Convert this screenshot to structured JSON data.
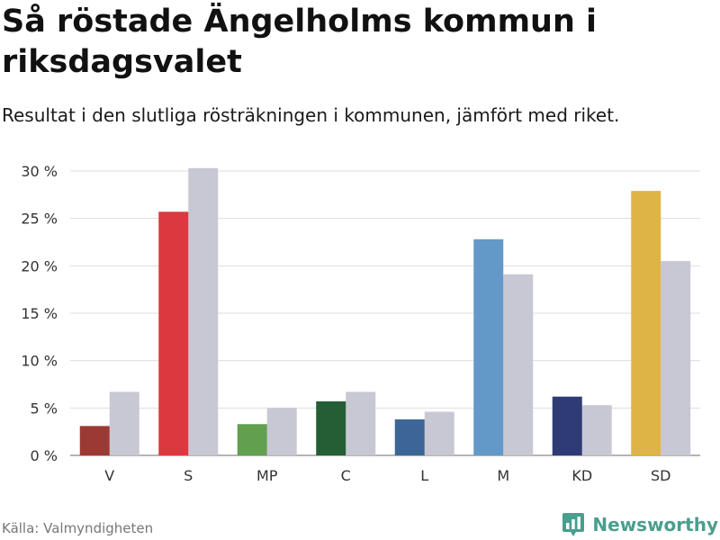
{
  "header": {
    "title": "Så röstade Ängelholms kommun i riksdagsvalet",
    "subtitle": "Resultat i den slutliga rösträkningen i kommunen, jämfört med riket."
  },
  "footer": {
    "source": "Källa: Valmyndigheten",
    "brand": "Newsworthy",
    "brand_icon": "bar-chart-logo-icon",
    "brand_color": "#4a9e8e"
  },
  "chart_data": {
    "type": "bar",
    "categories": [
      "V",
      "S",
      "MP",
      "C",
      "L",
      "M",
      "KD",
      "SD"
    ],
    "series": [
      {
        "values": [
          3.1,
          25.7,
          3.3,
          5.7,
          3.8,
          22.8,
          6.2,
          27.9
        ],
        "colors": [
          "#9b3a35",
          "#dc3840",
          "#62a050",
          "#255e35",
          "#3d6696",
          "#6299c8",
          "#2f3b75",
          "#dfb447"
        ]
      },
      {
        "values": [
          6.7,
          30.3,
          5.0,
          6.7,
          4.6,
          19.1,
          5.3,
          20.5
        ],
        "color": "#c8c8d4"
      }
    ],
    "yticks": [
      "0 %",
      "5 %",
      "10 %",
      "15 %",
      "20 %",
      "25 %",
      "30 %"
    ],
    "tick_values": [
      0,
      5,
      10,
      15,
      20,
      25,
      30
    ],
    "ylim": [
      0,
      30
    ],
    "grid": true,
    "xlabel": "",
    "ylabel": ""
  }
}
